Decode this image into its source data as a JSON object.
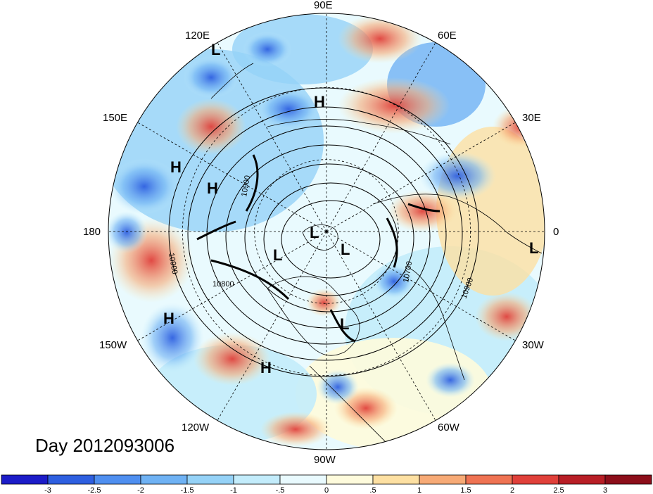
{
  "title": "Day 2012093006",
  "longitude_labels": [
    "90E",
    "60E",
    "30E",
    "0",
    "30W",
    "60W",
    "90W",
    "120W",
    "150W",
    "180",
    "150E",
    "120E"
  ],
  "pressure_centers": [
    {
      "type": "L",
      "lon_label_near": "120E"
    },
    {
      "type": "H",
      "lon_label_near": "90E"
    },
    {
      "type": "H",
      "lon_label_near": "150E"
    },
    {
      "type": "H",
      "lon_label_near": "150E"
    },
    {
      "type": "L",
      "lon_label_near": "pole"
    },
    {
      "type": "L",
      "lon_label_near": "pole"
    },
    {
      "type": "L",
      "lon_label_near": "pole"
    },
    {
      "type": "L",
      "lon_label_near": "0"
    },
    {
      "type": "L",
      "lon_label_near": "60W"
    },
    {
      "type": "H",
      "lon_label_near": "150W"
    },
    {
      "type": "H",
      "lon_label_near": "120W"
    }
  ],
  "contour_labels": [
    "10900",
    "10900",
    "10800",
    "10700",
    "10900"
  ],
  "colorbar": {
    "ticks": [
      "-3",
      "-2.5",
      "-2",
      "-1.5",
      "-1",
      "-.5",
      "0",
      ".5",
      "1",
      "1.5",
      "2",
      "2.5",
      "3"
    ],
    "colors": [
      "#1c1cc8",
      "#2e5fe0",
      "#4f8ff0",
      "#6fb2f4",
      "#95d2f7",
      "#c3ecfb",
      "#e9fafe",
      "#fefbdc",
      "#fde0a2",
      "#f7aa76",
      "#ef7353",
      "#e0403a",
      "#b81e26",
      "#8c0e1a"
    ]
  }
}
